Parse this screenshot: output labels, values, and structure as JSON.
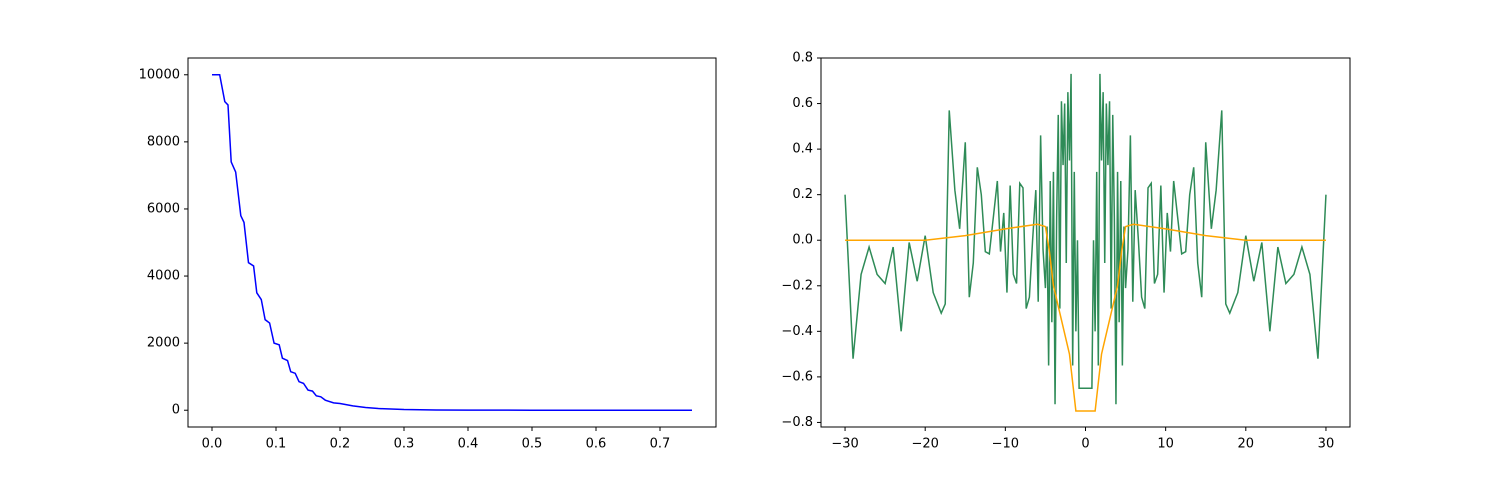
{
  "chart_data": [
    {
      "type": "line",
      "xlim": [
        -0.0375,
        0.7875
      ],
      "ylim": [
        -500,
        10500
      ],
      "xticks": [
        {
          "value": 0,
          "label": "0.0"
        },
        0.1,
        0.2,
        0.3,
        0.4,
        0.5,
        0.6,
        0.7
      ],
      "yticks": [
        0,
        2000,
        4000,
        6000,
        8000,
        10000
      ],
      "series": [
        {
          "color": "#0000ff",
          "x": [
            0,
            0.012,
            0.02,
            0.025,
            0.03,
            0.037,
            0.045,
            0.05,
            0.057,
            0.065,
            0.07,
            0.077,
            0.083,
            0.09,
            0.097,
            0.105,
            0.11,
            0.118,
            0.123,
            0.13,
            0.136,
            0.143,
            0.15,
            0.157,
            0.163,
            0.17,
            0.177,
            0.19,
            0.2,
            0.22,
            0.24,
            0.26,
            0.3,
            0.35,
            0.4,
            0.5,
            0.6,
            0.75
          ],
          "values": [
            10000,
            10000,
            9200,
            9100,
            7400,
            7100,
            5800,
            5600,
            4400,
            4300,
            3500,
            3300,
            2700,
            2600,
            2000,
            1950,
            1550,
            1480,
            1150,
            1100,
            850,
            800,
            600,
            570,
            430,
            400,
            300,
            220,
            200,
            130,
            80,
            50,
            20,
            8,
            3,
            1,
            0,
            0
          ]
        }
      ]
    },
    {
      "type": "line",
      "xlim": [
        -33,
        33
      ],
      "ylim": [
        -0.82,
        0.8
      ],
      "xticks": [
        {
          "value": -30,
          "label": "−30"
        },
        {
          "value": -20,
          "label": "−20"
        },
        {
          "value": -10,
          "label": "−10"
        },
        0,
        10,
        20,
        30
      ],
      "yticks": [
        {
          "value": -0.8,
          "label": "−0.8"
        },
        {
          "value": -0.6,
          "label": "−0.6"
        },
        {
          "value": -0.4,
          "label": "−0.4"
        },
        {
          "value": -0.2,
          "label": "−0.2"
        },
        {
          "value": 0,
          "label": "0.0"
        },
        0.2,
        0.4,
        0.6,
        0.8
      ],
      "series": [
        {
          "color": "#2e8b57",
          "x": [
            -30,
            -29,
            -28,
            -27,
            -26,
            -25,
            -24,
            -23,
            -22,
            -21,
            -20,
            -19,
            -18,
            -17.5,
            -17,
            -16.3,
            -15.7,
            -15,
            -14.5,
            -14,
            -13.5,
            -13,
            -12.5,
            -12,
            -11.5,
            -11,
            -10.6,
            -10.2,
            -9.8,
            -9.4,
            -9,
            -8.6,
            -8.2,
            -7.8,
            -7.4,
            -7,
            -6.6,
            -6.2,
            -5.9,
            -5.6,
            -5.3,
            -5,
            -4.8,
            -4.6,
            -4.4,
            -4.2,
            -4,
            -3.8,
            -3.6,
            -3.4,
            -3.2,
            -3,
            -2.8,
            -2.6,
            -2.4,
            -2.2,
            -2,
            -1.8,
            -1.6,
            -1.4,
            -1.2,
            -1,
            -0.8,
            0,
            0.8,
            1,
            1.2,
            1.4,
            1.6,
            1.8,
            2,
            2.2,
            2.4,
            2.6,
            2.8,
            3,
            3.2,
            3.4,
            3.6,
            3.8,
            4,
            4.2,
            4.4,
            4.6,
            4.8,
            5,
            5.3,
            5.6,
            5.9,
            6.2,
            6.6,
            7,
            7.4,
            7.8,
            8.2,
            8.6,
            9,
            9.4,
            9.8,
            10.2,
            10.6,
            11,
            11.5,
            12,
            12.5,
            13,
            13.5,
            14,
            14.5,
            15,
            15.7,
            16.3,
            17,
            17.5,
            18,
            19,
            20,
            21,
            22,
            23,
            24,
            25,
            26,
            27,
            28,
            29,
            30
          ],
          "values": [
            0.2,
            -0.52,
            -0.15,
            -0.03,
            -0.15,
            -0.19,
            -0.03,
            -0.4,
            -0.01,
            -0.18,
            0.02,
            -0.23,
            -0.32,
            -0.28,
            0.57,
            0.22,
            0.05,
            0.43,
            -0.25,
            -0.1,
            0.32,
            0.2,
            -0.05,
            -0.06,
            0.1,
            0.26,
            -0.05,
            0.12,
            -0.23,
            0.24,
            -0.15,
            -0.19,
            0.25,
            0.23,
            -0.3,
            -0.25,
            0,
            0.22,
            -0.27,
            0.46,
            -0.04,
            -0.21,
            0.06,
            -0.55,
            0.26,
            -0.36,
            0.3,
            -0.72,
            0.1,
            0.55,
            -0.3,
            0.61,
            0.33,
            0.6,
            -0.1,
            0.65,
            0.35,
            0.73,
            -0.55,
            0.3,
            -0.4,
            0,
            -0.65,
            -0.65,
            -0.65,
            0,
            -0.4,
            0.3,
            -0.55,
            0.73,
            0.35,
            0.65,
            -0.1,
            0.6,
            0.33,
            0.61,
            -0.3,
            0.55,
            0.1,
            -0.72,
            0.3,
            -0.36,
            0.26,
            -0.55,
            0.06,
            -0.21,
            -0.04,
            0.46,
            -0.27,
            0.22,
            0,
            -0.25,
            -0.3,
            0.23,
            0.25,
            -0.19,
            -0.15,
            0.24,
            -0.23,
            0.12,
            -0.05,
            0.26,
            0.1,
            -0.06,
            -0.05,
            0.2,
            0.32,
            -0.1,
            -0.25,
            0.43,
            0.05,
            0.22,
            0.57,
            -0.28,
            -0.32,
            -0.23,
            0.02,
            -0.18,
            -0.01,
            -0.4,
            -0.03,
            -0.19,
            -0.15,
            -0.03,
            -0.15,
            -0.52,
            0.2
          ]
        },
        {
          "color": "#ffa500",
          "x": [
            -30,
            -20,
            -15,
            -10,
            -6,
            -5,
            -4.5,
            -4,
            -3,
            -2,
            -1.2,
            1.2,
            2,
            3,
            4,
            4.5,
            5,
            6,
            10,
            15,
            20,
            30
          ],
          "values": [
            0,
            0,
            0.02,
            0.05,
            0.07,
            0.06,
            -0.05,
            -0.2,
            -0.35,
            -0.5,
            -0.75,
            -0.75,
            -0.5,
            -0.35,
            -0.2,
            -0.05,
            0.06,
            0.07,
            0.05,
            0.02,
            0,
            0
          ]
        }
      ]
    }
  ]
}
